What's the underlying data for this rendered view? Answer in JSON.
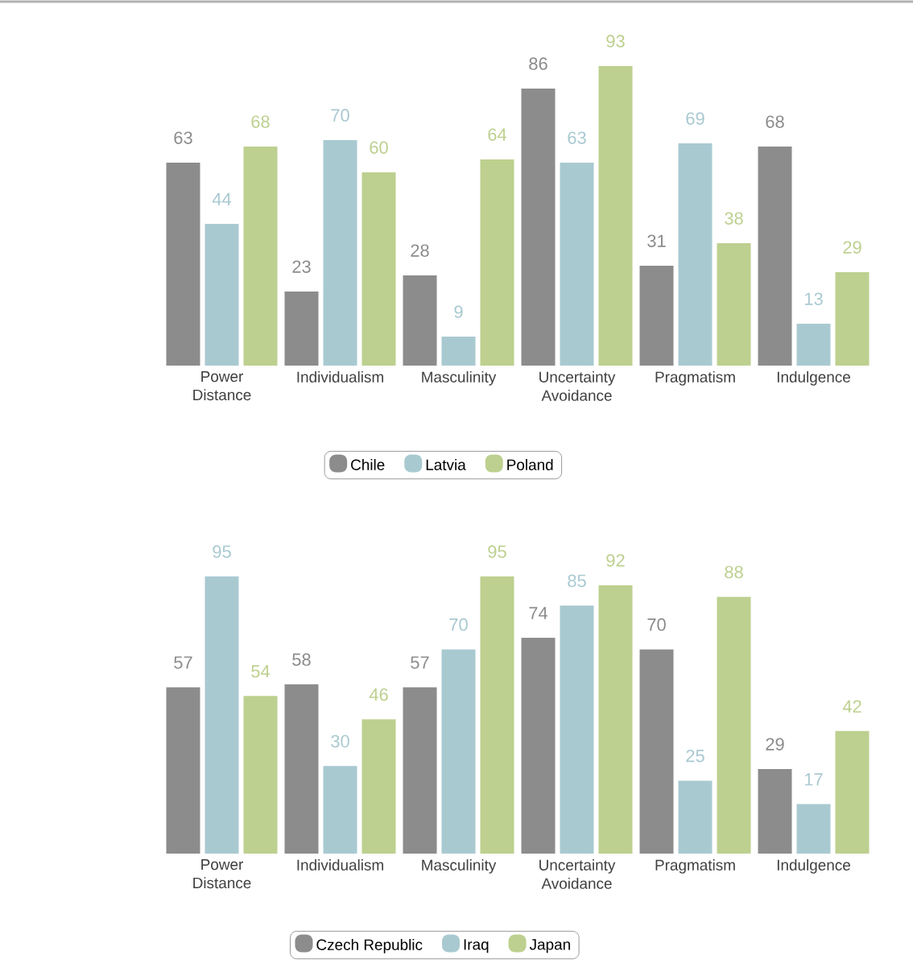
{
  "chart_data": [
    {
      "type": "bar",
      "categories": [
        "Power Distance",
        "Individualism",
        "Masculinity",
        "Uncertainty Avoidance",
        "Pragmatism",
        "Indulgence"
      ],
      "series": [
        {
          "name": "Chile",
          "color": "#8c8c8c",
          "values": [
            63,
            23,
            28,
            86,
            31,
            68
          ]
        },
        {
          "name": "Latvia",
          "color": "#a9c9d1",
          "values": [
            44,
            70,
            9,
            63,
            69,
            13
          ]
        },
        {
          "name": "Poland",
          "color": "#bdd08f",
          "values": [
            68,
            60,
            64,
            93,
            38,
            29
          ]
        }
      ],
      "data_labels": true,
      "legend": "bottom"
    },
    {
      "type": "bar",
      "categories": [
        "Power Distance",
        "Individualism",
        "Masculinity",
        "Uncertainty Avoidance",
        "Pragmatism",
        "Indulgence"
      ],
      "series": [
        {
          "name": "Czech Republic",
          "color": "#8c8c8c",
          "values": [
            57,
            58,
            57,
            74,
            70,
            29
          ]
        },
        {
          "name": "Iraq",
          "color": "#a9c9d1",
          "values": [
            95,
            30,
            70,
            85,
            25,
            17
          ]
        },
        {
          "name": "Japan",
          "color": "#bdd08f",
          "values": [
            54,
            46,
            95,
            92,
            88,
            42
          ]
        }
      ],
      "data_labels": true,
      "legend": "bottom"
    }
  ]
}
